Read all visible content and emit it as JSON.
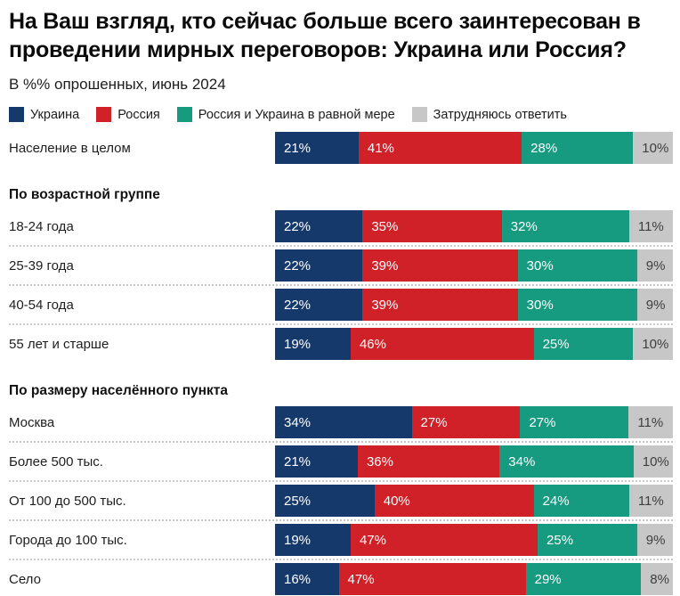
{
  "title": "На Ваш взгляд, кто сейчас больше всего заинтересован в проведении мирных переговоров: Украина или Россия?",
  "subtitle": "В %% опрошенных, июнь 2024",
  "colors": {
    "ukraine_blue": "#16396b",
    "russia_red": "#cf2127",
    "both_teal": "#169a80",
    "undecided_gray": "#c7c7c7",
    "label_on_dark": "#ffffff",
    "label_on_gray": "#3f3f3f",
    "separator": "#c8c8c8"
  },
  "legend": {
    "items": [
      {
        "label": "Украина",
        "color": "#16396b"
      },
      {
        "label": "Россия",
        "color": "#cf2127"
      },
      {
        "label": "Россия и Украина в равной мере",
        "color": "#169a80"
      },
      {
        "label": "Затрудняюсь ответить",
        "color": "#c7c7c7"
      }
    ]
  },
  "chart_data": {
    "type": "bar",
    "variant": "horizontal-stacked-100",
    "value_suffix": "%",
    "series_names": [
      "Украина",
      "Россия",
      "Россия и Украина в равной мере",
      "Затрудняюсь ответить"
    ],
    "series_colors": [
      "#16396b",
      "#cf2127",
      "#169a80",
      "#c7c7c7"
    ],
    "series_label_colors": [
      "#ffffff",
      "#ffffff",
      "#ffffff",
      "#3f3f3f"
    ],
    "groups": [
      {
        "header": null,
        "rows": [
          {
            "label": "Население в целом",
            "values": [
              21,
              41,
              28,
              10
            ]
          }
        ]
      },
      {
        "header": "По возрастной группе",
        "rows": [
          {
            "label": "18-24 года",
            "values": [
              22,
              35,
              32,
              11
            ]
          },
          {
            "label": "25-39 года",
            "values": [
              22,
              39,
              30,
              9
            ]
          },
          {
            "label": "40-54 года",
            "values": [
              22,
              39,
              30,
              9
            ]
          },
          {
            "label": "55 лет и старше",
            "values": [
              19,
              46,
              25,
              10
            ]
          }
        ]
      },
      {
        "header": "По размеру населённого пункта",
        "rows": [
          {
            "label": "Москва",
            "values": [
              34,
              27,
              27,
              11
            ]
          },
          {
            "label": "Более 500 тыс.",
            "values": [
              21,
              36,
              34,
              10
            ]
          },
          {
            "label": "От 100 до 500 тыс.",
            "values": [
              25,
              40,
              24,
              11
            ]
          },
          {
            "label": "Города до 100 тыс.",
            "values": [
              19,
              47,
              25,
              9
            ]
          },
          {
            "label": "Село",
            "values": [
              16,
              47,
              29,
              8
            ]
          }
        ]
      }
    ]
  }
}
